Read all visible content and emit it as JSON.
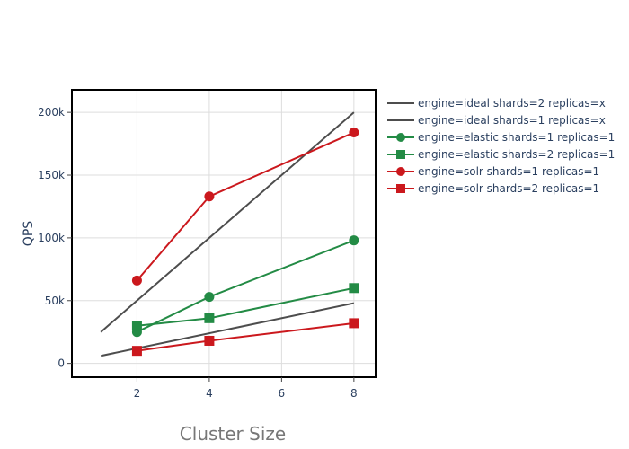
{
  "chart_data": {
    "type": "line",
    "xlabel": "Cluster Size",
    "ylabel": "QPS",
    "xlim": [
      0.2,
      8.6
    ],
    "ylim": [
      -11000,
      218000
    ],
    "x_ticks": [
      2,
      4,
      6,
      8
    ],
    "x_tick_labels": [
      "2",
      "4",
      "6",
      "8"
    ],
    "y_ticks": [
      0,
      50000,
      100000,
      150000,
      200000
    ],
    "y_tick_labels": [
      "0",
      "50k",
      "100k",
      "150k",
      "200k"
    ],
    "grid": true,
    "legend_position": "right",
    "series": [
      {
        "name": "engine=ideal shards=2 replicas=x",
        "color": "#4d4d4d",
        "marker": "none",
        "x": [
          1,
          8
        ],
        "y": [
          6000,
          48000
        ]
      },
      {
        "name": "engine=ideal shards=1 replicas=x",
        "color": "#4d4d4d",
        "marker": "none",
        "x": [
          1,
          8
        ],
        "y": [
          25000,
          200000
        ]
      },
      {
        "name": "engine=elastic shards=1 replicas=1",
        "color": "#238b45",
        "marker": "circle",
        "x": [
          2,
          4,
          8
        ],
        "y": [
          25000,
          53000,
          98000
        ]
      },
      {
        "name": "engine=elastic shards=2 replicas=1",
        "color": "#238b45",
        "marker": "square",
        "x": [
          2,
          4,
          8
        ],
        "y": [
          30000,
          36000,
          60000
        ]
      },
      {
        "name": "engine=solr shards=1 replicas=1",
        "color": "#cb181d",
        "marker": "circle",
        "x": [
          2,
          4,
          8
        ],
        "y": [
          66000,
          133000,
          184000
        ]
      },
      {
        "name": "engine=solr shards=2 replicas=1",
        "color": "#cb181d",
        "marker": "square",
        "x": [
          2,
          4,
          8
        ],
        "y": [
          10000,
          18000,
          32000
        ]
      }
    ]
  }
}
